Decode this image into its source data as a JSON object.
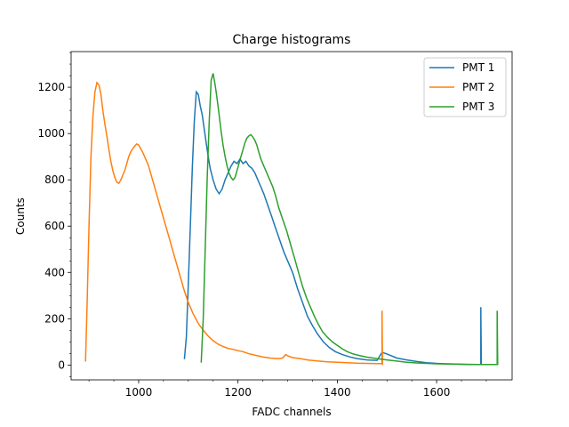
{
  "chart_data": {
    "type": "line",
    "title": "Charge histograms",
    "xlabel": "FADC channels",
    "ylabel": "Counts",
    "xlim": [
      864,
      1752
    ],
    "ylim": [
      -64,
      1354
    ],
    "xticks": [
      1000,
      1200,
      1400,
      1600
    ],
    "yticks": [
      0,
      200,
      400,
      600,
      800,
      1000,
      1200
    ],
    "legend_position": "top-right",
    "grid": false,
    "series": [
      {
        "name": "PMT 1",
        "color": "#1f77b4",
        "points": [
          [
            1092,
            25
          ],
          [
            1096,
            120
          ],
          [
            1100,
            350
          ],
          [
            1104,
            600
          ],
          [
            1108,
            850
          ],
          [
            1112,
            1050
          ],
          [
            1116,
            1180
          ],
          [
            1120,
            1170
          ],
          [
            1124,
            1120
          ],
          [
            1128,
            1080
          ],
          [
            1132,
            1020
          ],
          [
            1136,
            960
          ],
          [
            1140,
            900
          ],
          [
            1144,
            850
          ],
          [
            1150,
            800
          ],
          [
            1156,
            760
          ],
          [
            1162,
            740
          ],
          [
            1168,
            760
          ],
          [
            1174,
            800
          ],
          [
            1180,
            830
          ],
          [
            1186,
            860
          ],
          [
            1192,
            880
          ],
          [
            1198,
            870
          ],
          [
            1204,
            890
          ],
          [
            1210,
            870
          ],
          [
            1216,
            880
          ],
          [
            1222,
            860
          ],
          [
            1228,
            850
          ],
          [
            1234,
            830
          ],
          [
            1240,
            800
          ],
          [
            1246,
            770
          ],
          [
            1252,
            740
          ],
          [
            1260,
            690
          ],
          [
            1268,
            640
          ],
          [
            1276,
            590
          ],
          [
            1284,
            540
          ],
          [
            1292,
            490
          ],
          [
            1300,
            450
          ],
          [
            1310,
            400
          ],
          [
            1320,
            330
          ],
          [
            1330,
            270
          ],
          [
            1340,
            210
          ],
          [
            1350,
            170
          ],
          [
            1360,
            135
          ],
          [
            1372,
            100
          ],
          [
            1384,
            75
          ],
          [
            1396,
            58
          ],
          [
            1410,
            45
          ],
          [
            1425,
            35
          ],
          [
            1440,
            28
          ],
          [
            1460,
            22
          ],
          [
            1480,
            20
          ],
          [
            1490,
            55
          ],
          [
            1500,
            48
          ],
          [
            1520,
            30
          ],
          [
            1540,
            22
          ],
          [
            1560,
            15
          ],
          [
            1580,
            10
          ],
          [
            1600,
            7
          ],
          [
            1620,
            5
          ],
          [
            1640,
            4
          ],
          [
            1660,
            3
          ],
          [
            1680,
            2
          ],
          [
            1689,
            2
          ],
          [
            1689,
            250
          ],
          [
            1690,
            0
          ]
        ]
      },
      {
        "name": "PMT 2",
        "color": "#ff7f0e",
        "points": [
          [
            893,
            15
          ],
          [
            896,
            250
          ],
          [
            900,
            600
          ],
          [
            904,
            900
          ],
          [
            908,
            1080
          ],
          [
            912,
            1180
          ],
          [
            916,
            1220
          ],
          [
            920,
            1210
          ],
          [
            924,
            1170
          ],
          [
            928,
            1100
          ],
          [
            932,
            1040
          ],
          [
            936,
            990
          ],
          [
            940,
            930
          ],
          [
            944,
            880
          ],
          [
            948,
            840
          ],
          [
            952,
            810
          ],
          [
            956,
            790
          ],
          [
            960,
            785
          ],
          [
            964,
            800
          ],
          [
            968,
            820
          ],
          [
            972,
            840
          ],
          [
            976,
            870
          ],
          [
            980,
            900
          ],
          [
            984,
            920
          ],
          [
            988,
            935
          ],
          [
            992,
            945
          ],
          [
            996,
            955
          ],
          [
            1000,
            950
          ],
          [
            1004,
            935
          ],
          [
            1008,
            920
          ],
          [
            1012,
            900
          ],
          [
            1016,
            880
          ],
          [
            1020,
            860
          ],
          [
            1028,
            800
          ],
          [
            1036,
            740
          ],
          [
            1044,
            680
          ],
          [
            1052,
            620
          ],
          [
            1060,
            560
          ],
          [
            1068,
            500
          ],
          [
            1076,
            440
          ],
          [
            1084,
            380
          ],
          [
            1092,
            320
          ],
          [
            1100,
            270
          ],
          [
            1110,
            220
          ],
          [
            1120,
            180
          ],
          [
            1130,
            150
          ],
          [
            1140,
            125
          ],
          [
            1150,
            105
          ],
          [
            1160,
            90
          ],
          [
            1170,
            80
          ],
          [
            1180,
            72
          ],
          [
            1190,
            68
          ],
          [
            1200,
            62
          ],
          [
            1210,
            58
          ],
          [
            1220,
            50
          ],
          [
            1235,
            42
          ],
          [
            1250,
            35
          ],
          [
            1265,
            30
          ],
          [
            1280,
            28
          ],
          [
            1290,
            30
          ],
          [
            1296,
            45
          ],
          [
            1300,
            40
          ],
          [
            1310,
            32
          ],
          [
            1325,
            28
          ],
          [
            1340,
            22
          ],
          [
            1360,
            18
          ],
          [
            1380,
            14
          ],
          [
            1400,
            12
          ],
          [
            1420,
            10
          ],
          [
            1440,
            8
          ],
          [
            1460,
            7
          ],
          [
            1480,
            6
          ],
          [
            1490,
            6
          ],
          [
            1490,
            235
          ],
          [
            1491,
            0
          ]
        ]
      },
      {
        "name": "PMT 3",
        "color": "#2ca02c",
        "points": [
          [
            1126,
            10
          ],
          [
            1130,
            200
          ],
          [
            1134,
            500
          ],
          [
            1138,
            800
          ],
          [
            1142,
            1050
          ],
          [
            1146,
            1230
          ],
          [
            1150,
            1260
          ],
          [
            1154,
            1210
          ],
          [
            1158,
            1150
          ],
          [
            1162,
            1080
          ],
          [
            1166,
            1010
          ],
          [
            1170,
            950
          ],
          [
            1174,
            900
          ],
          [
            1178,
            860
          ],
          [
            1182,
            830
          ],
          [
            1186,
            810
          ],
          [
            1190,
            800
          ],
          [
            1194,
            810
          ],
          [
            1198,
            840
          ],
          [
            1202,
            870
          ],
          [
            1206,
            900
          ],
          [
            1210,
            930
          ],
          [
            1214,
            960
          ],
          [
            1218,
            980
          ],
          [
            1222,
            990
          ],
          [
            1226,
            995
          ],
          [
            1230,
            985
          ],
          [
            1234,
            970
          ],
          [
            1238,
            950
          ],
          [
            1242,
            920
          ],
          [
            1246,
            890
          ],
          [
            1252,
            860
          ],
          [
            1258,
            830
          ],
          [
            1264,
            800
          ],
          [
            1270,
            770
          ],
          [
            1276,
            730
          ],
          [
            1282,
            680
          ],
          [
            1290,
            630
          ],
          [
            1298,
            580
          ],
          [
            1306,
            520
          ],
          [
            1314,
            460
          ],
          [
            1322,
            400
          ],
          [
            1330,
            340
          ],
          [
            1338,
            290
          ],
          [
            1346,
            250
          ],
          [
            1354,
            210
          ],
          [
            1362,
            175
          ],
          [
            1370,
            145
          ],
          [
            1380,
            120
          ],
          [
            1390,
            100
          ],
          [
            1400,
            85
          ],
          [
            1410,
            70
          ],
          [
            1420,
            58
          ],
          [
            1432,
            48
          ],
          [
            1446,
            40
          ],
          [
            1460,
            34
          ],
          [
            1480,
            28
          ],
          [
            1500,
            22
          ],
          [
            1520,
            17
          ],
          [
            1540,
            12
          ],
          [
            1560,
            9
          ],
          [
            1580,
            7
          ],
          [
            1600,
            5
          ],
          [
            1630,
            4
          ],
          [
            1660,
            3
          ],
          [
            1690,
            2
          ],
          [
            1715,
            2
          ],
          [
            1722,
            2
          ],
          [
            1722,
            235
          ],
          [
            1723,
            0
          ]
        ]
      }
    ]
  }
}
